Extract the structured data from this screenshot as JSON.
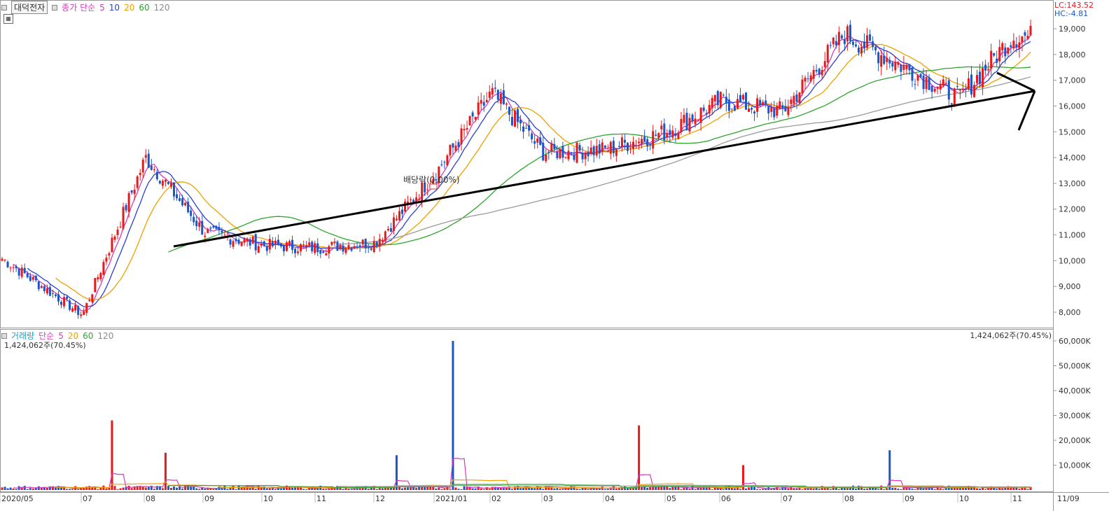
{
  "header": {
    "stock_name": "대덕전자",
    "price_label": "종가 단순",
    "ma_periods": [
      "5",
      "10",
      "20",
      "60",
      "120"
    ],
    "lc_text": "LC:143.52",
    "hc_text": "HC:-4.81",
    "annotation": "배당락(0.00%)"
  },
  "volume_header": {
    "label": "거래량",
    "ma_label": "단순",
    "ma_periods": [
      "5",
      "20",
      "60",
      "120"
    ],
    "current_left": "1,424,062주(70.45%)",
    "current_right": "1,424,062주(70.45%)"
  },
  "colors": {
    "up": "#e8191a",
    "down": "#1a56c8",
    "ma5": "#d63ab9",
    "ma10": "#2c3fd0",
    "ma20": "#f0a000",
    "ma60": "#2ca52c",
    "ma120": "#9a9a9a"
  },
  "chart_data": [
    {
      "type": "candlestick",
      "title": "대덕전자",
      "ylim": [
        7500,
        19500
      ],
      "y_ticks": [
        "8,000",
        "9,000",
        "10,000",
        "11,000",
        "12,000",
        "13,000",
        "14,000",
        "15,000",
        "16,000",
        "17,000",
        "18,000",
        "19,000"
      ],
      "x_ticks": [
        "2020/05",
        "07",
        "08",
        "09",
        "10",
        "11",
        "12",
        "2021/01",
        "02",
        "03",
        "04",
        "05",
        "06",
        "07",
        "08",
        "09",
        "10",
        "11",
        "11/09"
      ],
      "key_closes": [
        {
          "date": "2020/05",
          "close": 10100
        },
        {
          "date": "2020/07",
          "close": 7900
        },
        {
          "date": "2020/08",
          "close": 14000
        },
        {
          "date": "2020/09",
          "close": 11100
        },
        {
          "date": "2020/10",
          "close": 10600
        },
        {
          "date": "2020/11",
          "close": 10500
        },
        {
          "date": "2020/12",
          "close": 10700
        },
        {
          "date": "2021/01",
          "close": 13400
        },
        {
          "date": "2021/02",
          "close": 16500
        },
        {
          "date": "2021/03",
          "close": 14200
        },
        {
          "date": "2021/04",
          "close": 14300
        },
        {
          "date": "2021/05",
          "close": 15000
        },
        {
          "date": "2021/06",
          "close": 16200
        },
        {
          "date": "2021/07",
          "close": 15800
        },
        {
          "date": "2021/08",
          "close": 18800
        },
        {
          "date": "2021/09",
          "close": 17500
        },
        {
          "date": "2021/10",
          "close": 16300
        },
        {
          "date": "2021/11",
          "close": 18700
        }
      ]
    },
    {
      "type": "bar",
      "title": "거래량",
      "ylim": [
        0,
        62000
      ],
      "y_ticks": [
        "10,000K",
        "20,000K",
        "30,000K",
        "40,000K",
        "50,000K",
        "60,000K"
      ],
      "volume_spikes_k": [
        {
          "date": "2020/07",
          "value": 28000
        },
        {
          "date": "2020/08",
          "value": 15000
        },
        {
          "date": "2020/12",
          "value": 14000
        },
        {
          "date": "2021/01",
          "value": 60000
        },
        {
          "date": "2021/04",
          "value": 26000
        },
        {
          "date": "2021/06",
          "value": 10000
        },
        {
          "date": "2021/08",
          "value": 16000
        },
        {
          "date": "2021/11",
          "value": 1424
        }
      ]
    }
  ]
}
